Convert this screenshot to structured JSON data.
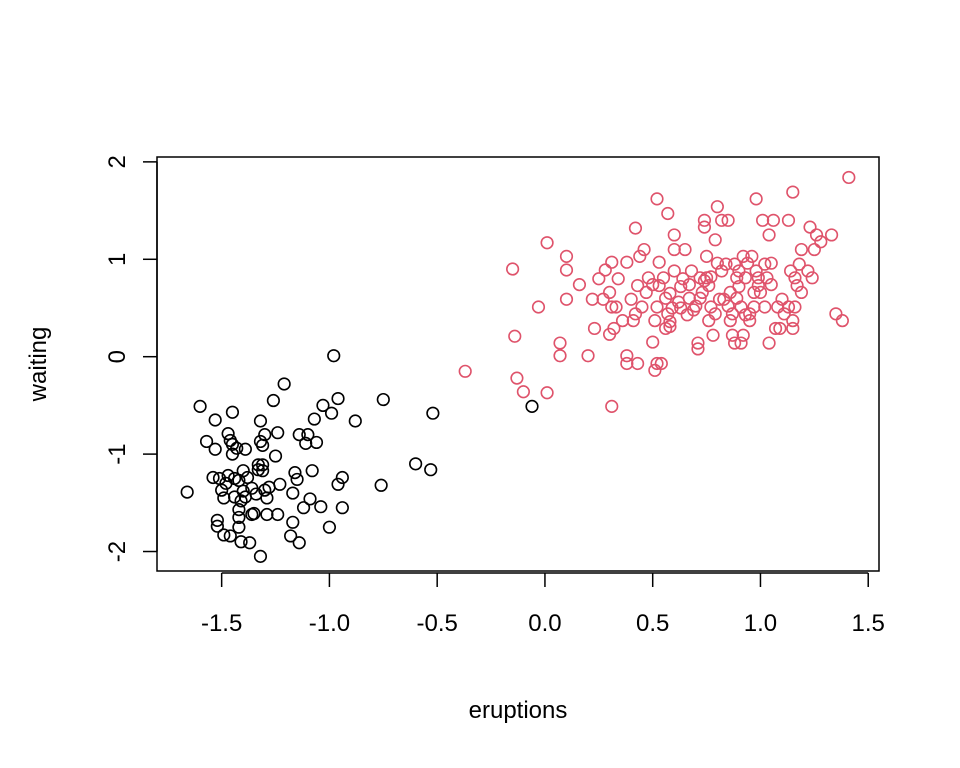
{
  "chart_data": {
    "type": "scatter",
    "title": "",
    "xlabel": "eruptions",
    "ylabel": "waiting",
    "xlim": [
      -1.8,
      1.55
    ],
    "ylim": [
      -2.2,
      2.05
    ],
    "xticks": [
      -1.5,
      -1.0,
      -0.5,
      0.0,
      0.5,
      1.0,
      1.5
    ],
    "xtick_labels": [
      "-1.5",
      "-1.0",
      "-0.5",
      "0.0",
      "0.5",
      "1.0",
      "1.5"
    ],
    "yticks": [
      -2,
      -1,
      0,
      1,
      2
    ],
    "ytick_labels": [
      "-2",
      "-1",
      "0",
      "1",
      "2"
    ],
    "grid": false,
    "legend": "none",
    "series": [
      {
        "color": "#000000",
        "points": [
          [
            -1.66,
            -1.39
          ],
          [
            -1.6,
            -0.51
          ],
          [
            -1.57,
            -0.87
          ],
          [
            -1.54,
            -1.24
          ],
          [
            -1.53,
            -0.65
          ],
          [
            -1.53,
            -0.95
          ],
          [
            -1.52,
            -1.68
          ],
          [
            -1.52,
            -1.74
          ],
          [
            -1.51,
            -1.25
          ],
          [
            -1.5,
            -1.37
          ],
          [
            -1.49,
            -1.83
          ],
          [
            -1.49,
            -1.45
          ],
          [
            -1.48,
            -1.3
          ],
          [
            -1.47,
            -0.79
          ],
          [
            -1.47,
            -1.22
          ],
          [
            -1.46,
            -1.84
          ],
          [
            -1.46,
            -0.86
          ],
          [
            -1.45,
            -0.57
          ],
          [
            -1.45,
            -0.9
          ],
          [
            -1.45,
            -1.0
          ],
          [
            -1.44,
            -1.25
          ],
          [
            -1.44,
            -1.44
          ],
          [
            -1.43,
            -0.94
          ],
          [
            -1.42,
            -1.27
          ],
          [
            -1.42,
            -1.65
          ],
          [
            -1.42,
            -1.57
          ],
          [
            -1.42,
            -1.75
          ],
          [
            -1.41,
            -1.9
          ],
          [
            -1.41,
            -1.48
          ],
          [
            -1.4,
            -1.17
          ],
          [
            -1.4,
            -1.38
          ],
          [
            -1.39,
            -1.44
          ],
          [
            -1.39,
            -0.95
          ],
          [
            -1.38,
            -1.24
          ],
          [
            -1.37,
            -1.91
          ],
          [
            -1.36,
            -1.62
          ],
          [
            -1.36,
            -1.35
          ],
          [
            -1.35,
            -1.61
          ],
          [
            -1.34,
            -1.41
          ],
          [
            -1.33,
            -1.11
          ],
          [
            -1.33,
            -1.16
          ],
          [
            -1.32,
            -2.05
          ],
          [
            -1.32,
            -0.66
          ],
          [
            -1.32,
            -0.87
          ],
          [
            -1.31,
            -0.91
          ],
          [
            -1.31,
            -1.17
          ],
          [
            -1.31,
            -1.11
          ],
          [
            -1.3,
            -1.37
          ],
          [
            -1.3,
            -0.8
          ],
          [
            -1.29,
            -1.62
          ],
          [
            -1.29,
            -1.45
          ],
          [
            -1.28,
            -1.34
          ],
          [
            -1.26,
            -0.45
          ],
          [
            -1.25,
            -1.02
          ],
          [
            -1.24,
            -0.78
          ],
          [
            -1.24,
            -1.62
          ],
          [
            -1.23,
            -1.31
          ],
          [
            -1.21,
            -0.28
          ],
          [
            -1.18,
            -1.84
          ],
          [
            -1.17,
            -1.7
          ],
          [
            -1.17,
            -1.4
          ],
          [
            -1.16,
            -1.19
          ],
          [
            -1.15,
            -1.26
          ],
          [
            -1.14,
            -1.91
          ],
          [
            -1.14,
            -0.8
          ],
          [
            -1.12,
            -1.55
          ],
          [
            -1.11,
            -0.89
          ],
          [
            -1.1,
            -0.8
          ],
          [
            -1.09,
            -1.46
          ],
          [
            -1.08,
            -1.17
          ],
          [
            -1.07,
            -0.64
          ],
          [
            -1.06,
            -0.88
          ],
          [
            -1.04,
            -1.54
          ],
          [
            -1.03,
            -0.5
          ],
          [
            -1.0,
            -1.75
          ],
          [
            -0.99,
            -0.58
          ],
          [
            -0.98,
            0.01
          ],
          [
            -0.96,
            -0.43
          ],
          [
            -0.96,
            -1.31
          ],
          [
            -0.94,
            -1.55
          ],
          [
            -0.94,
            -1.24
          ],
          [
            -0.88,
            -0.66
          ],
          [
            -0.76,
            -1.32
          ],
          [
            -0.75,
            -0.44
          ],
          [
            -0.6,
            -1.1
          ],
          [
            -0.53,
            -1.16
          ],
          [
            -0.52,
            -0.58
          ],
          [
            -0.06,
            -0.51
          ]
        ]
      },
      {
        "color": "#DF536B",
        "points": [
          [
            -0.37,
            -0.15
          ],
          [
            -0.15,
            0.9
          ],
          [
            -0.14,
            0.21
          ],
          [
            -0.13,
            -0.22
          ],
          [
            -0.1,
            -0.36
          ],
          [
            -0.03,
            0.51
          ],
          [
            0.01,
            -0.37
          ],
          [
            0.01,
            1.17
          ],
          [
            0.07,
            0.14
          ],
          [
            0.07,
            0.01
          ],
          [
            0.1,
            0.89
          ],
          [
            0.1,
            1.03
          ],
          [
            0.1,
            0.59
          ],
          [
            0.16,
            0.74
          ],
          [
            0.2,
            0.01
          ],
          [
            0.22,
            0.59
          ],
          [
            0.23,
            0.29
          ],
          [
            0.25,
            0.8
          ],
          [
            0.27,
            0.59
          ],
          [
            0.28,
            0.89
          ],
          [
            0.3,
            0.66
          ],
          [
            0.3,
            0.23
          ],
          [
            0.31,
            0.51
          ],
          [
            0.31,
            0.97
          ],
          [
            0.31,
            -0.51
          ],
          [
            0.32,
            0.29
          ],
          [
            0.33,
            0.51
          ],
          [
            0.34,
            0.8
          ],
          [
            0.36,
            0.37
          ],
          [
            0.38,
            0.97
          ],
          [
            0.38,
            -0.07
          ],
          [
            0.38,
            0.01
          ],
          [
            0.4,
            0.59
          ],
          [
            0.41,
            0.37
          ],
          [
            0.42,
            0.44
          ],
          [
            0.42,
            1.32
          ],
          [
            0.43,
            -0.07
          ],
          [
            0.43,
            0.73
          ],
          [
            0.44,
            1.03
          ],
          [
            0.45,
            0.51
          ],
          [
            0.46,
            1.1
          ],
          [
            0.47,
            0.66
          ],
          [
            0.48,
            0.81
          ],
          [
            0.5,
            0.74
          ],
          [
            0.5,
            0.15
          ],
          [
            0.51,
            -0.14
          ],
          [
            0.51,
            0.37
          ],
          [
            0.52,
            -0.07
          ],
          [
            0.52,
            0.51
          ],
          [
            0.52,
            1.62
          ],
          [
            0.53,
            0.97
          ],
          [
            0.53,
            0.73
          ],
          [
            0.54,
            -0.07
          ],
          [
            0.55,
            0.81
          ],
          [
            0.56,
            0.29
          ],
          [
            0.56,
            0.6
          ],
          [
            0.57,
            1.47
          ],
          [
            0.57,
            0.44
          ],
          [
            0.58,
            0.65
          ],
          [
            0.58,
            0.36
          ],
          [
            0.58,
            0.31
          ],
          [
            0.59,
            0.5
          ],
          [
            0.6,
            1.1
          ],
          [
            0.6,
            0.88
          ],
          [
            0.6,
            1.25
          ],
          [
            0.62,
            0.56
          ],
          [
            0.63,
            0.72
          ],
          [
            0.63,
            0.5
          ],
          [
            0.64,
            0.8
          ],
          [
            0.65,
            1.1
          ],
          [
            0.66,
            0.43
          ],
          [
            0.67,
            0.74
          ],
          [
            0.67,
            0.6
          ],
          [
            0.68,
            0.88
          ],
          [
            0.69,
            0.48
          ],
          [
            0.7,
            0.52
          ],
          [
            0.71,
            0.14
          ],
          [
            0.71,
            0.08
          ],
          [
            0.72,
            0.6
          ],
          [
            0.72,
            0.81
          ],
          [
            0.73,
            0.66
          ],
          [
            0.74,
            0.78
          ],
          [
            0.74,
            1.4
          ],
          [
            0.74,
            1.33
          ],
          [
            0.75,
            0.81
          ],
          [
            0.75,
            1.03
          ],
          [
            0.76,
            0.73
          ],
          [
            0.76,
            0.37
          ],
          [
            0.77,
            0.82
          ],
          [
            0.77,
            0.51
          ],
          [
            0.78,
            0.22
          ],
          [
            0.79,
            0.44
          ],
          [
            0.79,
            1.2
          ],
          [
            0.8,
            0.96
          ],
          [
            0.8,
            1.54
          ],
          [
            0.81,
            0.59
          ],
          [
            0.82,
            0.88
          ],
          [
            0.82,
            1.4
          ],
          [
            0.83,
            0.59
          ],
          [
            0.84,
            0.95
          ],
          [
            0.85,
            0.52
          ],
          [
            0.85,
            1.4
          ],
          [
            0.86,
            0.66
          ],
          [
            0.86,
            0.37
          ],
          [
            0.87,
            0.44
          ],
          [
            0.87,
            0.22
          ],
          [
            0.88,
            0.95
          ],
          [
            0.88,
            0.14
          ],
          [
            0.89,
            0.81
          ],
          [
            0.89,
            0.6
          ],
          [
            0.9,
            0.88
          ],
          [
            0.9,
            0.72
          ],
          [
            0.91,
            0.14
          ],
          [
            0.91,
            0.51
          ],
          [
            0.92,
            1.03
          ],
          [
            0.92,
            0.22
          ],
          [
            0.93,
            0.43
          ],
          [
            0.93,
            0.81
          ],
          [
            0.94,
            0.96
          ],
          [
            0.95,
            0.44
          ],
          [
            0.95,
            0.37
          ],
          [
            0.96,
            1.03
          ],
          [
            0.97,
            0.66
          ],
          [
            0.97,
            0.51
          ],
          [
            0.98,
            0.88
          ],
          [
            0.98,
            1.62
          ],
          [
            0.99,
            0.73
          ],
          [
            0.99,
            0.81
          ],
          [
            1.0,
            0.66
          ],
          [
            1.01,
            1.4
          ],
          [
            1.02,
            0.51
          ],
          [
            1.02,
            0.95
          ],
          [
            1.03,
            0.81
          ],
          [
            1.04,
            1.25
          ],
          [
            1.04,
            0.14
          ],
          [
            1.05,
            0.74
          ],
          [
            1.05,
            0.96
          ],
          [
            1.06,
            1.4
          ],
          [
            1.07,
            0.29
          ],
          [
            1.08,
            0.51
          ],
          [
            1.09,
            0.29
          ],
          [
            1.1,
            0.59
          ],
          [
            1.11,
            0.44
          ],
          [
            1.13,
            0.51
          ],
          [
            1.13,
            1.4
          ],
          [
            1.14,
            0.88
          ],
          [
            1.15,
            0.37
          ],
          [
            1.15,
            0.29
          ],
          [
            1.15,
            1.69
          ],
          [
            1.16,
            0.81
          ],
          [
            1.16,
            0.51
          ],
          [
            1.17,
            0.73
          ],
          [
            1.18,
            0.95
          ],
          [
            1.19,
            0.66
          ],
          [
            1.19,
            1.1
          ],
          [
            1.22,
            0.88
          ],
          [
            1.23,
            1.33
          ],
          [
            1.24,
            0.81
          ],
          [
            1.25,
            1.1
          ],
          [
            1.26,
            1.25
          ],
          [
            1.28,
            1.18
          ],
          [
            1.33,
            1.25
          ],
          [
            1.35,
            0.44
          ],
          [
            1.38,
            0.37
          ],
          [
            1.41,
            1.84
          ]
        ]
      }
    ]
  }
}
